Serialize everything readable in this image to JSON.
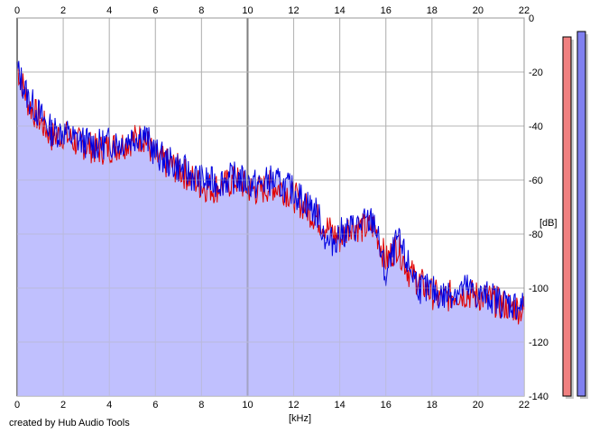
{
  "credit": "created by Hub Audio Tools",
  "colors": {
    "background": "#ffffff",
    "fill": "#c0c0fe",
    "grid": "#b4b4b4",
    "grid_major": "#808080",
    "left_channel": "#e00000",
    "right_channel": "#0000e0",
    "left_meter": "#f08080",
    "right_meter": "#8080f0"
  },
  "chart_data": {
    "type": "line",
    "title": "",
    "xlabel": "[kHz]",
    "ylabel": "[dB]",
    "xlim": [
      0,
      22
    ],
    "ylim": [
      -140,
      0
    ],
    "x_ticks_top": [
      "0",
      "2",
      "4",
      "6",
      "8",
      "10",
      "12",
      "14",
      "16",
      "18",
      "20",
      "22"
    ],
    "x_ticks_bottom": [
      "0",
      "2",
      "4",
      "6",
      "8",
      "10",
      "12",
      "14",
      "16",
      "18",
      "20",
      "22"
    ],
    "y_ticks": [
      "0",
      "-20",
      "-40",
      "-60",
      "-80",
      "-100",
      "-120",
      "-140"
    ],
    "grid": true,
    "legend": "none",
    "x": [
      0,
      0.5,
      1,
      1.5,
      2,
      2.5,
      3,
      3.5,
      4,
      4.5,
      5,
      5.5,
      6,
      6.5,
      7,
      7.5,
      8,
      8.5,
      9,
      9.5,
      10,
      10.5,
      11,
      11.5,
      12,
      12.5,
      13,
      13.5,
      14,
      14.5,
      15,
      15.5,
      16,
      16.5,
      17,
      17.5,
      18,
      18.5,
      19,
      19.5,
      20,
      20.5,
      21,
      21.5,
      22
    ],
    "series": [
      {
        "values": [
          -18,
          -32,
          -38,
          -44,
          -43,
          -46,
          -47,
          -49,
          -48,
          -47,
          -45,
          -44,
          -52,
          -54,
          -56,
          -59,
          -62,
          -63,
          -62,
          -60,
          -63,
          -64,
          -62,
          -63,
          -66,
          -70,
          -74,
          -78,
          -82,
          -76,
          -78,
          -77,
          -90,
          -84,
          -94,
          -98,
          -102,
          -104,
          -102,
          -102,
          -103,
          -104,
          -106,
          -107,
          -108
        ]
      },
      {
        "values": [
          -19,
          -30,
          -36,
          -42,
          -42,
          -45,
          -46,
          -47,
          -46,
          -46,
          -44,
          -43,
          -50,
          -53,
          -55,
          -58,
          -60,
          -61,
          -60,
          -59,
          -61,
          -62,
          -60,
          -62,
          -64,
          -68,
          -72,
          -84,
          -80,
          -78,
          -76,
          -75,
          -96,
          -82,
          -92,
          -100,
          -101,
          -103,
          -101,
          -100,
          -103,
          -103,
          -105,
          -106,
          -107
        ]
      }
    ],
    "level_meters": [
      {
        "channel": "left",
        "level_db": -7
      },
      {
        "channel": "right",
        "level_db": -5
      }
    ]
  }
}
